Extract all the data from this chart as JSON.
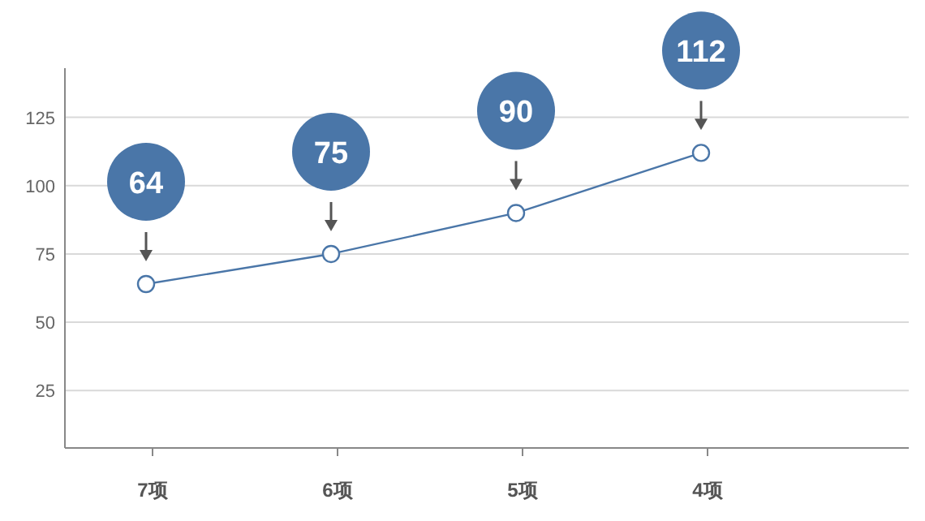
{
  "chart_data": {
    "type": "line",
    "categories": [
      "7项",
      "6项",
      "5项",
      "4项"
    ],
    "series": [
      {
        "color": "#4a76a8",
        "values": [
          64,
          75,
          90,
          112
        ]
      }
    ],
    "ylim": [
      4,
      143
    ],
    "yticks": [
      25,
      50,
      75,
      100,
      125
    ],
    "grid": "y",
    "marker": "circle",
    "line_style": "solid",
    "data_labels": true
  }
}
